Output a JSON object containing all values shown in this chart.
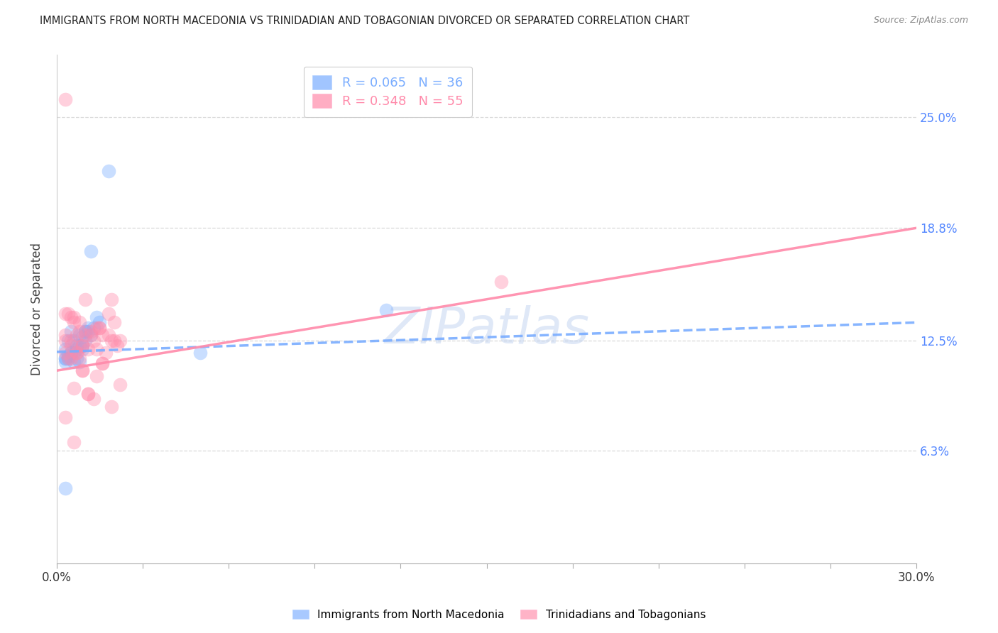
{
  "title": "IMMIGRANTS FROM NORTH MACEDONIA VS TRINIDADIAN AND TOBAGONIAN DIVORCED OR SEPARATED CORRELATION CHART",
  "source": "Source: ZipAtlas.com",
  "ylabel_label": "Divorced or Separated",
  "ytick_values": [
    0.063,
    0.125,
    0.188,
    0.25
  ],
  "ytick_labels": [
    "6.3%",
    "12.5%",
    "18.8%",
    "25.0%"
  ],
  "xlim": [
    0.0,
    0.3
  ],
  "ylim": [
    0.0,
    0.285
  ],
  "legend_blue_text": "R = 0.065   N = 36",
  "legend_pink_text": "R = 0.348   N = 55",
  "bottom_legend_blue": "Immigrants from North Macedonia",
  "bottom_legend_pink": "Trinidadians and Tobagonians",
  "blue_scatter_x": [
    0.005,
    0.008,
    0.01,
    0.012,
    0.015,
    0.003,
    0.004,
    0.006,
    0.007,
    0.009,
    0.011,
    0.013,
    0.003,
    0.005,
    0.007,
    0.009,
    0.011,
    0.014,
    0.004,
    0.006,
    0.008,
    0.01,
    0.003,
    0.005,
    0.007,
    0.009,
    0.003,
    0.004,
    0.006,
    0.008,
    0.01,
    0.05,
    0.115,
    0.003,
    0.012,
    0.018
  ],
  "blue_scatter_y": [
    0.13,
    0.128,
    0.13,
    0.128,
    0.135,
    0.12,
    0.125,
    0.125,
    0.122,
    0.127,
    0.132,
    0.132,
    0.115,
    0.118,
    0.12,
    0.122,
    0.13,
    0.138,
    0.116,
    0.118,
    0.122,
    0.125,
    0.115,
    0.118,
    0.115,
    0.12,
    0.113,
    0.115,
    0.113,
    0.113,
    0.13,
    0.118,
    0.142,
    0.042,
    0.175,
    0.22
  ],
  "pink_scatter_x": [
    0.003,
    0.005,
    0.006,
    0.008,
    0.01,
    0.012,
    0.015,
    0.018,
    0.02,
    0.003,
    0.005,
    0.007,
    0.009,
    0.011,
    0.014,
    0.016,
    0.019,
    0.022,
    0.004,
    0.006,
    0.008,
    0.01,
    0.013,
    0.015,
    0.018,
    0.021,
    0.003,
    0.005,
    0.007,
    0.009,
    0.012,
    0.014,
    0.017,
    0.02,
    0.003,
    0.005,
    0.007,
    0.009,
    0.011,
    0.014,
    0.016,
    0.019,
    0.022,
    0.004,
    0.006,
    0.008,
    0.011,
    0.013,
    0.016,
    0.019,
    0.003,
    0.006,
    0.009,
    0.155,
    0.003
  ],
  "pink_scatter_y": [
    0.14,
    0.138,
    0.135,
    0.135,
    0.148,
    0.13,
    0.132,
    0.14,
    0.135,
    0.128,
    0.125,
    0.128,
    0.122,
    0.12,
    0.132,
    0.128,
    0.125,
    0.125,
    0.14,
    0.138,
    0.13,
    0.128,
    0.125,
    0.132,
    0.128,
    0.122,
    0.125,
    0.122,
    0.118,
    0.122,
    0.128,
    0.12,
    0.118,
    0.125,
    0.118,
    0.115,
    0.118,
    0.108,
    0.095,
    0.105,
    0.112,
    0.088,
    0.1,
    0.115,
    0.098,
    0.115,
    0.095,
    0.092,
    0.112,
    0.148,
    0.082,
    0.068,
    0.108,
    0.158,
    0.26
  ],
  "blue_line_x": [
    0.0,
    0.3
  ],
  "blue_line_y": [
    0.1185,
    0.135
  ],
  "pink_line_x": [
    0.0,
    0.3
  ],
  "pink_line_y": [
    0.108,
    0.188
  ],
  "scatter_size": 200,
  "scatter_alpha": 0.4,
  "blue_color": "#7aadff",
  "pink_color": "#ff8aaa",
  "watermark_text": "ZIPatlas",
  "grid_color": "#d0d0d0",
  "bg_color": "#ffffff"
}
